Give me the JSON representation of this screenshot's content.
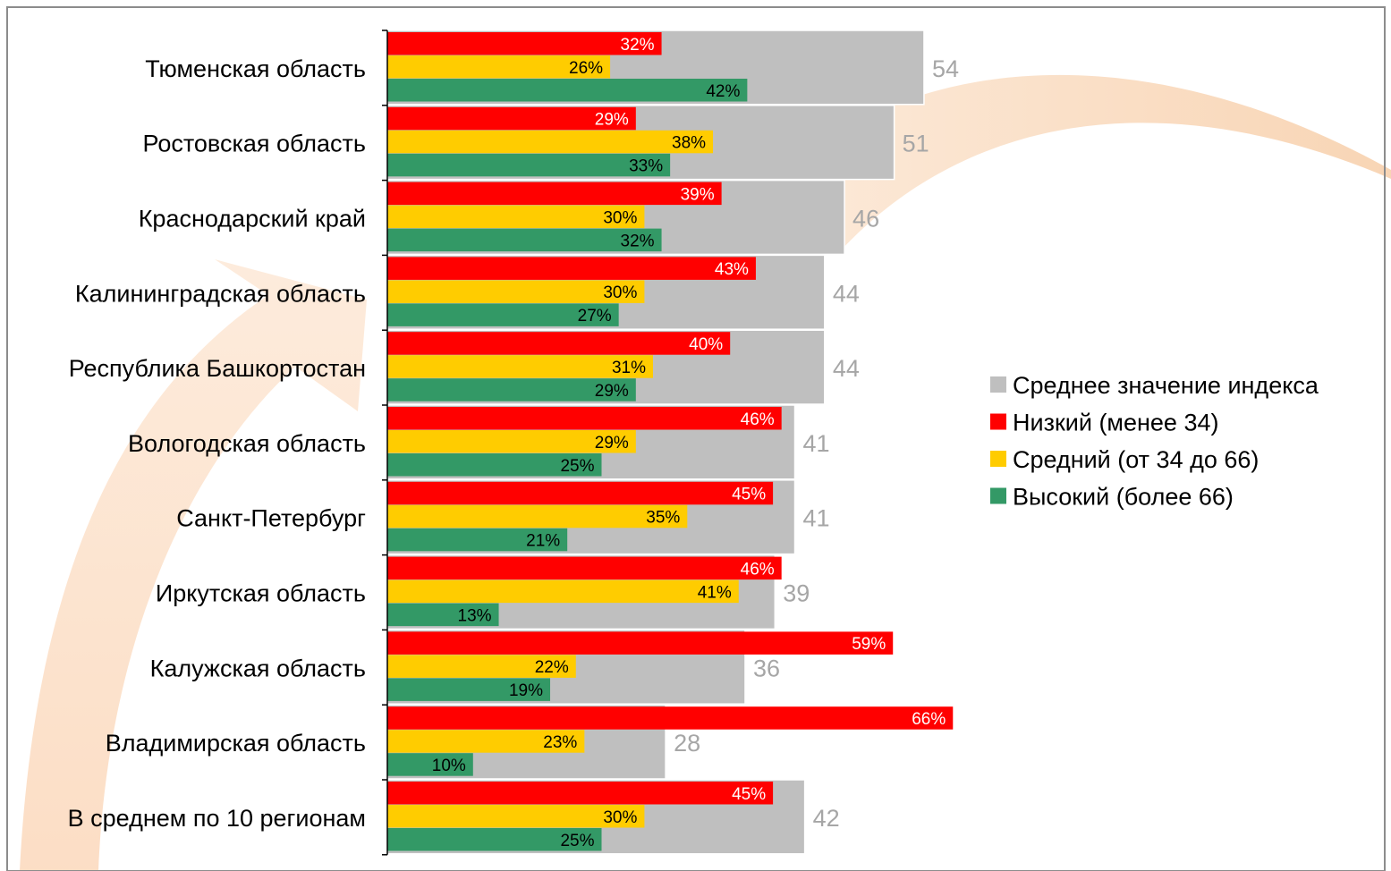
{
  "chart_data": {
    "type": "bar",
    "orientation": "horizontal",
    "categories": [
      "Тюменская область",
      "Ростовская область",
      "Краснодарский край",
      "Калининградская область",
      "Республика Башкортостан",
      "Вологодская область",
      "Санкт-Петербург",
      "Иркутская область",
      "Калужская область",
      "Владимирская область",
      "В среднем по 10 регионам"
    ],
    "series": [
      {
        "name": "Среднее значение индекса",
        "color": "#bfbfbf",
        "values": [
          54,
          51,
          46,
          44,
          44,
          41,
          41,
          39,
          36,
          28,
          42
        ],
        "labels": [
          "54",
          "51",
          "46",
          "44",
          "44",
          "41",
          "41",
          "39",
          "36",
          "28",
          "42"
        ]
      },
      {
        "name": "Низкий (менее 34)",
        "color": "#ff0000",
        "values": [
          32,
          29,
          39,
          43,
          40,
          46,
          45,
          46,
          59,
          66,
          45
        ],
        "labels": [
          "32%",
          "29%",
          "39%",
          "43%",
          "40%",
          "46%",
          "45%",
          "46%",
          "59%",
          "66%",
          "45%"
        ]
      },
      {
        "name": "Средний (от 34 до 66)",
        "color": "#ffcc00",
        "values": [
          26,
          38,
          30,
          30,
          31,
          29,
          35,
          41,
          22,
          23,
          30
        ],
        "labels": [
          "26%",
          "38%",
          "30%",
          "30%",
          "31%",
          "29%",
          "35%",
          "41%",
          "22%",
          "23%",
          "30%"
        ]
      },
      {
        "name": "Высокий (более 66)",
        "color": "#339966",
        "values": [
          42,
          33,
          32,
          27,
          29,
          25,
          21,
          13,
          19,
          10,
          25
        ],
        "labels": [
          "42%",
          "33%",
          "32%",
          "27%",
          "29%",
          "25%",
          "21%",
          "13%",
          "19%",
          "10%",
          "25%"
        ]
      }
    ],
    "legend_position": "right",
    "grid": false,
    "title": "",
    "xlabel": "",
    "ylabel": ""
  }
}
